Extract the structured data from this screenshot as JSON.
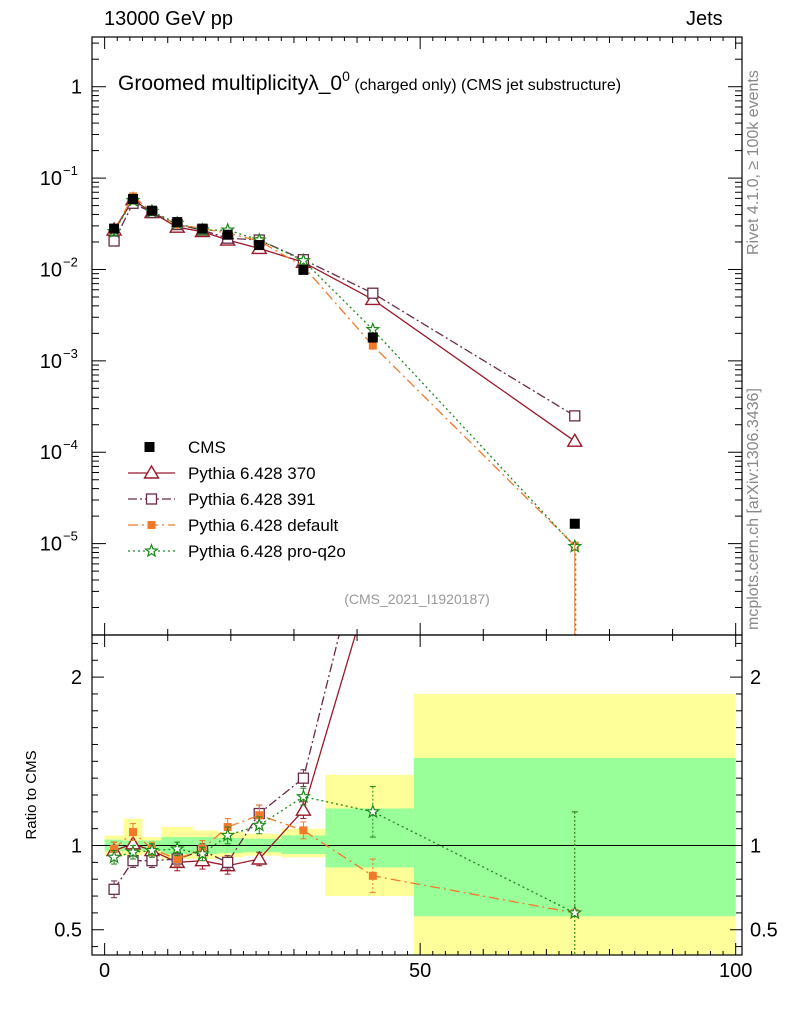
{
  "header": {
    "energy": "13000 GeV pp",
    "category": "Jets"
  },
  "side_labels": {
    "rivet": "Rivet 4.1.0, ≥ 100k events",
    "mcplots": "mcplots.cern.ch [arXiv:1306.3436]"
  },
  "chart_data": {
    "type": "line",
    "title_main": "Groomed multiplicity",
    "title_lambda": "λ_0",
    "title_sup": "0",
    "title_rest": " (charged only) (CMS jet substructure)",
    "analysis_id": "(CMS_2021_I1920187)",
    "x_range": [
      -2,
      101
    ],
    "x_ticks": [
      0,
      50,
      100
    ],
    "main": {
      "yscale": "log",
      "ylim": [
        1e-06,
        3.5
      ],
      "y_tick_labels": [
        {
          "v": 1,
          "base": "1",
          "exp": ""
        },
        {
          "v": 0.1,
          "base": "10",
          "exp": "−1"
        },
        {
          "v": 0.01,
          "base": "10",
          "exp": "−2"
        },
        {
          "v": 0.001,
          "base": "10",
          "exp": "−3"
        },
        {
          "v": 0.0001,
          "base": "10",
          "exp": "−4"
        },
        {
          "v": 1e-05,
          "base": "10",
          "exp": "−5"
        }
      ]
    },
    "ratio": {
      "ylabel": "Ratio to CMS",
      "ylim": [
        0.35,
        2.25
      ],
      "y_ticks": [
        0.5,
        1,
        2
      ],
      "y_tick_labels": [
        "0.5",
        "1",
        "2"
      ]
    },
    "bins": [
      {
        "lo": 0,
        "hi": 3,
        "x": 1.5
      },
      {
        "lo": 3,
        "hi": 6,
        "x": 4.5
      },
      {
        "lo": 6,
        "hi": 9,
        "x": 7.5
      },
      {
        "lo": 9,
        "hi": 14,
        "x": 11.5
      },
      {
        "lo": 14,
        "hi": 18,
        "x": 15.5
      },
      {
        "lo": 18,
        "hi": 22,
        "x": 19.5
      },
      {
        "lo": 22,
        "hi": 28,
        "x": 24.5
      },
      {
        "lo": 28,
        "hi": 35,
        "x": 31.5
      },
      {
        "lo": 35,
        "hi": 49,
        "x": 42.5
      },
      {
        "lo": 49,
        "hi": 100,
        "x": 74.5
      }
    ],
    "data": {
      "name": "CMS",
      "values": [
        0.028,
        0.059,
        0.044,
        0.033,
        0.028,
        0.024,
        0.0185,
        0.0099,
        0.0018,
        1.65e-05
      ],
      "band_green": [
        [
          0.965,
          1.035
        ],
        [
          0.97,
          1.03
        ],
        [
          0.97,
          1.03
        ],
        [
          0.95,
          1.05
        ],
        [
          0.95,
          1.05
        ],
        [
          0.955,
          1.045
        ],
        [
          0.96,
          1.04
        ],
        [
          0.95,
          1.06
        ],
        [
          0.87,
          1.22
        ],
        [
          0.58,
          1.52
        ]
      ],
      "band_yellow": [
        [
          0.94,
          1.06
        ],
        [
          0.94,
          1.16
        ],
        [
          0.95,
          1.05
        ],
        [
          0.92,
          1.11
        ],
        [
          0.92,
          1.09
        ],
        [
          0.93,
          1.08
        ],
        [
          0.94,
          1.07
        ],
        [
          0.93,
          1.1
        ],
        [
          0.7,
          1.42
        ],
        [
          0.35,
          1.9
        ]
      ]
    },
    "series": [
      {
        "name": "Pythia 6.428 370",
        "color": "#9a1a2a",
        "marker": "triangle",
        "dash": "",
        "values": [
          0.027,
          0.058,
          0.042,
          0.029,
          0.026,
          0.021,
          0.017,
          0.012,
          0.0047,
          0.000132
        ],
        "ratio": [
          0.97,
          1.01,
          0.97,
          0.9,
          0.91,
          0.88,
          0.92,
          1.21,
          2.6,
          8.0
        ],
        "rerr": [
          0.05,
          0.05,
          0.04,
          0.05,
          0.05,
          0.05,
          0.04,
          0.05,
          0.1,
          0.3
        ]
      },
      {
        "name": "Pythia 6.428 391",
        "color": "#6a2a4a",
        "marker": "square",
        "dash": "9,3,2,3",
        "values": [
          0.0205,
          0.053,
          0.042,
          0.031,
          0.027,
          0.022,
          0.021,
          0.0128,
          0.0055,
          0.00025
        ],
        "ratio": [
          0.74,
          0.91,
          0.91,
          0.92,
          0.97,
          0.9,
          1.19,
          1.4,
          3.05,
          15.0
        ],
        "rerr": [
          0.05,
          0.04,
          0.04,
          0.04,
          0.04,
          0.04,
          0.05,
          0.05,
          0.1,
          0.3
        ]
      },
      {
        "name": "Pythia 6.428 default",
        "color": "#f07a2a",
        "marker": "fsquare",
        "dash": "10,4,2,4",
        "values": [
          0.027,
          0.063,
          0.043,
          0.031,
          0.028,
          0.025,
          0.0205,
          0.0108,
          0.00147,
          9.5e-06
        ],
        "ratio": [
          0.98,
          1.08,
          0.98,
          0.92,
          0.98,
          1.11,
          1.18,
          1.09,
          0.82,
          0.6
        ],
        "rerr": [
          0.04,
          0.05,
          0.04,
          0.04,
          0.05,
          0.05,
          0.06,
          0.05,
          0.1,
          0.6
        ]
      },
      {
        "name": "Pythia 6.428 pro-q2o",
        "color": "#1a8a1a",
        "marker": "star",
        "dash": "2,3",
        "values": [
          0.026,
          0.057,
          0.043,
          0.032,
          0.027,
          0.027,
          0.021,
          0.0125,
          0.0022,
          9.3e-06
        ],
        "ratio": [
          0.93,
          0.96,
          0.97,
          0.98,
          0.95,
          1.06,
          1.12,
          1.29,
          1.2,
          0.6
        ],
        "rerr": [
          0.04,
          0.04,
          0.04,
          0.04,
          0.04,
          0.05,
          0.05,
          0.05,
          0.15,
          0.6
        ]
      }
    ]
  }
}
